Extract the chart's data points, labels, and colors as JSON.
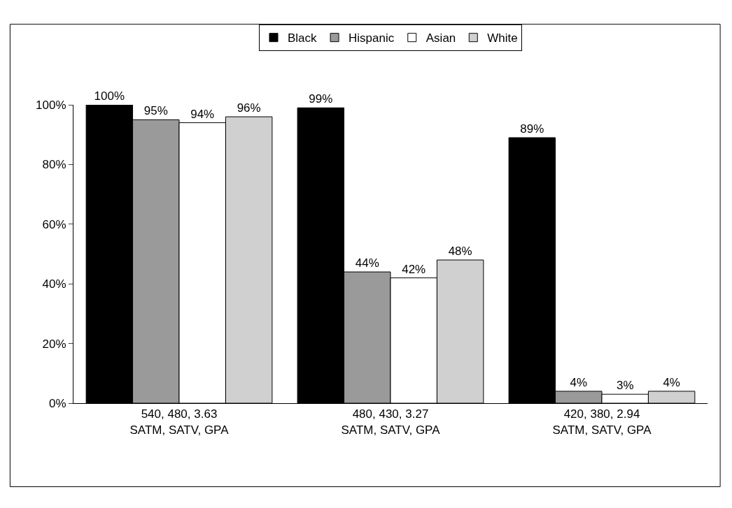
{
  "chart_data": {
    "type": "bar",
    "categories": [
      "540, 480, 3.63\nSATM, SATV, GPA",
      "480, 430, 3.27\nSATM, SATV, GPA",
      "420, 380, 2.94\nSATM, SATV, GPA"
    ],
    "series": [
      {
        "name": "Black",
        "color": "#000000",
        "values": [
          100,
          99,
          89
        ]
      },
      {
        "name": "Hispanic",
        "color": "#9a9a9a",
        "values": [
          95,
          44,
          4
        ]
      },
      {
        "name": "Asian",
        "color": "#ffffff",
        "values": [
          94,
          42,
          3
        ]
      },
      {
        "name": "White",
        "color": "#d0d0d0",
        "values": [
          96,
          48,
          4
        ]
      }
    ],
    "value_labels": [
      [
        "100%",
        "99%",
        "89%"
      ],
      [
        "95%",
        "44%",
        "4%"
      ],
      [
        "94%",
        "42%",
        "3%"
      ],
      [
        "96%",
        "48%",
        "4%"
      ]
    ],
    "ylim": [
      0,
      100
    ],
    "yticks": [
      {
        "value": 0,
        "label": "0%"
      },
      {
        "value": 20,
        "label": "20%"
      },
      {
        "value": 40,
        "label": "40%"
      },
      {
        "value": 60,
        "label": "60%"
      },
      {
        "value": 80,
        "label": "80%"
      },
      {
        "value": 100,
        "label": "100%"
      }
    ],
    "legend": "top"
  }
}
